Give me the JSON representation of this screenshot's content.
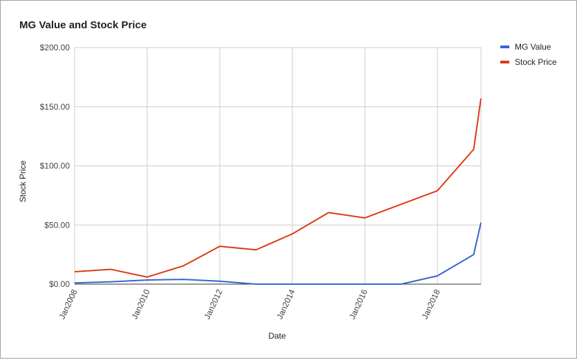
{
  "chart_data": {
    "type": "line",
    "title": "MG Value and Stock Price",
    "xlabel": "Date",
    "ylabel": "Stock Price",
    "x": [
      "2008",
      "2009",
      "2010",
      "2011",
      "2012",
      "2013",
      "2014",
      "2015",
      "2016",
      "2017",
      "2018",
      "2019",
      "2019.2"
    ],
    "x_ticks": [
      {
        "value": 2008,
        "label": "Jan2008"
      },
      {
        "value": 2010,
        "label": "Jan2010"
      },
      {
        "value": 2012,
        "label": "Jan2012"
      },
      {
        "value": 2014,
        "label": "Jan2014"
      },
      {
        "value": 2016,
        "label": "Jan2016"
      },
      {
        "value": 2018,
        "label": "Jan2018"
      }
    ],
    "y_ticks": [
      {
        "value": 0,
        "label": "$0.00"
      },
      {
        "value": 50,
        "label": "$50.00"
      },
      {
        "value": 100,
        "label": "$100.00"
      },
      {
        "value": 150,
        "label": "$150.00"
      },
      {
        "value": 200,
        "label": "$200.00"
      }
    ],
    "xlim": [
      2008,
      2019.2
    ],
    "ylim": [
      0,
      200
    ],
    "grid": true,
    "legend": "right",
    "series": [
      {
        "name": "MG Value",
        "color": "#3366cc",
        "points": [
          [
            2008,
            1
          ],
          [
            2009,
            2
          ],
          [
            2010,
            3.5
          ],
          [
            2011,
            4
          ],
          [
            2012,
            2.5
          ],
          [
            2013,
            0
          ],
          [
            2014,
            0
          ],
          [
            2015,
            0
          ],
          [
            2016,
            0
          ],
          [
            2017,
            0
          ],
          [
            2018,
            7
          ],
          [
            2019,
            25
          ],
          [
            2019.2,
            52
          ]
        ]
      },
      {
        "name": "Stock Price",
        "color": "#dc3912",
        "points": [
          [
            2008,
            10.5
          ],
          [
            2009,
            12.5
          ],
          [
            2010,
            6
          ],
          [
            2011,
            15.5
          ],
          [
            2012,
            32
          ],
          [
            2013,
            29
          ],
          [
            2014,
            42.5
          ],
          [
            2015,
            60.5
          ],
          [
            2016,
            56
          ],
          [
            2017,
            67.5
          ],
          [
            2018,
            79
          ],
          [
            2019,
            114
          ],
          [
            2019.2,
            157
          ]
        ]
      }
    ]
  }
}
